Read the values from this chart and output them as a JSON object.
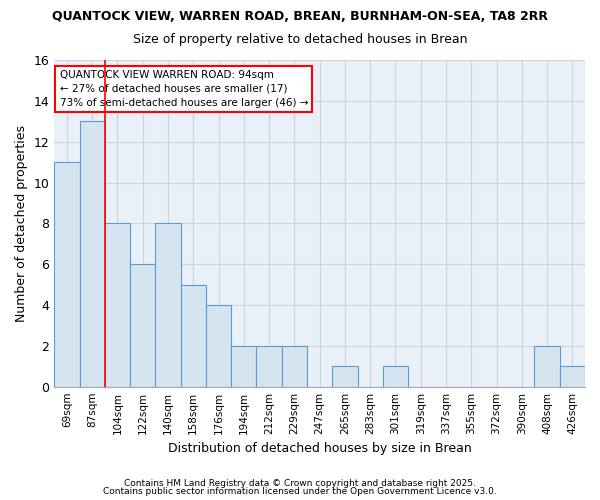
{
  "title1": "QUANTOCK VIEW, WARREN ROAD, BREAN, BURNHAM-ON-SEA, TA8 2RR",
  "title2": "Size of property relative to detached houses in Brean",
  "xlabel": "Distribution of detached houses by size in Brean",
  "ylabel": "Number of detached properties",
  "categories": [
    "69sqm",
    "87sqm",
    "104sqm",
    "122sqm",
    "140sqm",
    "158sqm",
    "176sqm",
    "194sqm",
    "212sqm",
    "229sqm",
    "247sqm",
    "265sqm",
    "283sqm",
    "301sqm",
    "319sqm",
    "337sqm",
    "355sqm",
    "372sqm",
    "390sqm",
    "408sqm",
    "426sqm"
  ],
  "values": [
    11,
    13,
    8,
    6,
    8,
    5,
    4,
    2,
    2,
    2,
    0,
    1,
    0,
    1,
    0,
    0,
    0,
    0,
    0,
    2,
    1
  ],
  "bar_fill_color": "#d6e4f0",
  "bar_edge_color": "#5b9bd5",
  "grid_color": "#c8d4e0",
  "plot_bg_color": "#eaf0f8",
  "fig_bg_color": "#ffffff",
  "red_line_index": 1.5,
  "ylim": [
    0,
    16
  ],
  "yticks": [
    0,
    2,
    4,
    6,
    8,
    10,
    12,
    14,
    16
  ],
  "annotation_line1": "QUANTOCK VIEW WARREN ROAD: 94sqm",
  "annotation_line2": "← 27% of detached houses are smaller (17)",
  "annotation_line3": "73% of semi-detached houses are larger (46) →",
  "footer1": "Contains HM Land Registry data © Crown copyright and database right 2025.",
  "footer2": "Contains public sector information licensed under the Open Government Licence v3.0."
}
